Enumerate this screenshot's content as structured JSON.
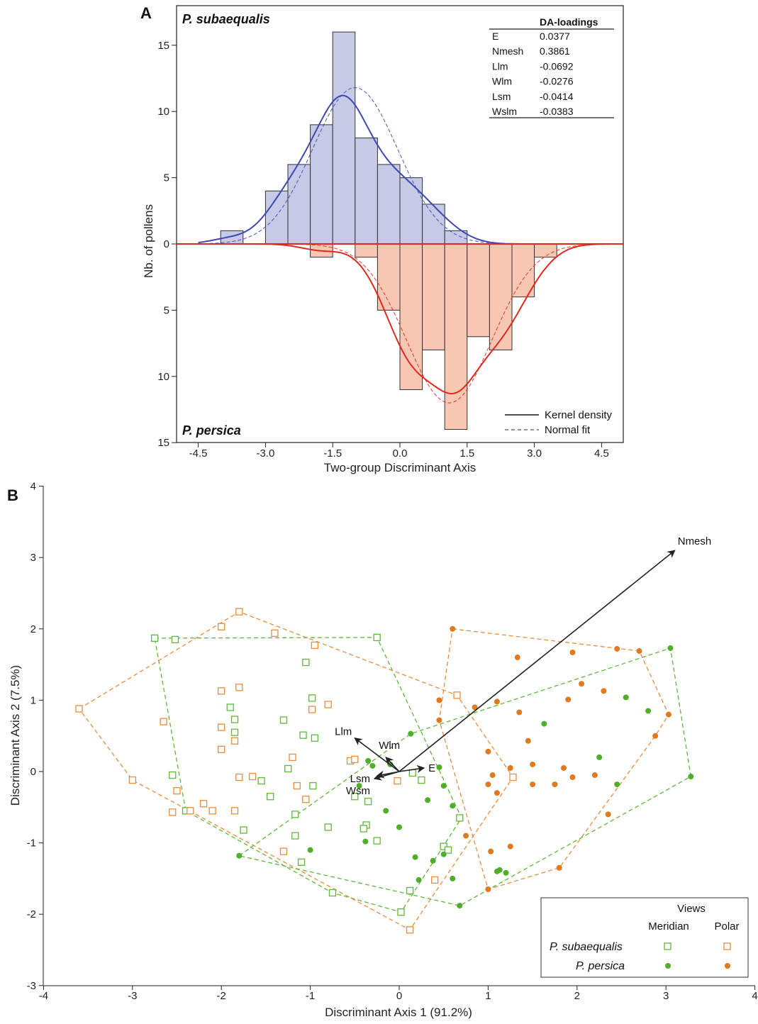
{
  "panel_a": {
    "panel_label": "A",
    "species_top": "P. subaequalis",
    "species_bottom": "P. persica",
    "loadings_title": "DA-loadings",
    "loadings": [
      {
        "var": "E",
        "value": "0.0377"
      },
      {
        "var": "Nmesh",
        "value": "0.3861"
      },
      {
        "var": "Llm",
        "value": "-0.0692"
      },
      {
        "var": "Wlm",
        "value": "-0.0276"
      },
      {
        "var": "Lsm",
        "value": "-0.0414"
      },
      {
        "var": "Wslm",
        "value": "-0.0383"
      }
    ],
    "legend": [
      {
        "label": "Kernel density",
        "style": "solid"
      },
      {
        "label": "Normal fit",
        "style": "dashed"
      }
    ]
  },
  "panel_b": {
    "panel_label": "B",
    "legend_title": "Views",
    "legend_cols": [
      "Meridian",
      "Polar"
    ],
    "legend_rows": [
      "P. subaequalis",
      "P. persica"
    ]
  },
  "chart_data": [
    {
      "type": "bar",
      "subtype": "mirrored histogram with density curves",
      "xlabel": "Two-group Discriminant Axis",
      "ylabel": "Nb. of pollens",
      "xlim": [
        -5.0,
        5.0
      ],
      "ylim_top": [
        0,
        16
      ],
      "ylim_bottom": [
        0,
        15
      ],
      "xticks": [
        "-4.5",
        "-3.0",
        "-1.5",
        "0.0",
        "1.5",
        "3.0",
        "4.5"
      ],
      "yticks_top": [
        "0",
        "5",
        "10",
        "15"
      ],
      "yticks_bottom": [
        "5",
        "10",
        "15"
      ],
      "bin_width": 0.5,
      "bins_left_edges": [
        -4.0,
        -3.5,
        -3.0,
        -2.5,
        -2.0,
        -1.5,
        -1.0,
        -0.5,
        0.0,
        0.5,
        1.0,
        1.5,
        2.0,
        2.5,
        3.0
      ],
      "series": [
        {
          "name": "P. subaequalis",
          "color": "#c7cae6",
          "curve_color": "#3b49b0",
          "direction": "up",
          "values": [
            1,
            0,
            4,
            6,
            9,
            16,
            8,
            6,
            5,
            3,
            1,
            0,
            0,
            0,
            0
          ],
          "kernel_density_peak": 11.2,
          "normal_fit_mean": -1.0,
          "normal_fit_peak": 11.8
        },
        {
          "name": "P. persica",
          "color": "#f7c7b4",
          "curve_color": "#dd2a1c",
          "direction": "down",
          "values": [
            0,
            0,
            0,
            0,
            1,
            0,
            1,
            5,
            11,
            8,
            14,
            7,
            8,
            4,
            1
          ],
          "kernel_density_peak": 11.3,
          "normal_fit_mean": 1.1,
          "normal_fit_peak": 12.0
        }
      ]
    },
    {
      "type": "scatter",
      "subtype": "discriminant biplot with convex hulls",
      "xlabel": "Discriminant Axis 1 (91.2%)",
      "ylabel": "Discriminant Axis 2 (7.5%)",
      "xlim": [
        -4,
        4
      ],
      "ylim": [
        -3,
        4
      ],
      "xticks": [
        "-4",
        "-3",
        "-2",
        "-1",
        "0",
        "1",
        "2",
        "3",
        "4"
      ],
      "yticks": [
        "-3",
        "-2",
        "-1",
        "0",
        "1",
        "2",
        "3",
        "4"
      ],
      "grid": false,
      "legend_placement": "bottom-right",
      "vectors": [
        {
          "name": "Nmesh",
          "x": 3.1,
          "y": 3.1
        },
        {
          "name": "Llm",
          "x": -0.5,
          "y": 0.47
        },
        {
          "name": "Wlm",
          "x": -0.15,
          "y": 0.2
        },
        {
          "name": "E",
          "x": 0.28,
          "y": 0.05
        },
        {
          "name": "Lsm",
          "x": -0.25,
          "y": -0.06
        },
        {
          "name": "Wsm",
          "x": -0.28,
          "y": -0.1
        }
      ],
      "series": [
        {
          "name": "P. subaequalis Meridian",
          "marker": "open-square",
          "color": "#5fb83a",
          "points": [
            [
              -2.75,
              1.87
            ],
            [
              -2.52,
              1.85
            ],
            [
              -1.05,
              1.53
            ],
            [
              -1.9,
              0.9
            ],
            [
              -1.85,
              0.73
            ],
            [
              -1.85,
              0.55
            ],
            [
              -0.98,
              1.03
            ],
            [
              -1.3,
              0.72
            ],
            [
              -1.08,
              0.51
            ],
            [
              -0.95,
              0.47
            ],
            [
              -1.25,
              0.04
            ],
            [
              -1.55,
              -0.13
            ],
            [
              -1.45,
              -0.35
            ],
            [
              -0.97,
              -0.2
            ],
            [
              -1.17,
              -0.6
            ],
            [
              -1.75,
              -0.82
            ],
            [
              -1.17,
              -0.9
            ],
            [
              -0.8,
              -0.78
            ],
            [
              -0.5,
              -0.35
            ],
            [
              -0.37,
              -0.75
            ],
            [
              -0.4,
              -0.8
            ],
            [
              -0.35,
              -0.42
            ],
            [
              -0.25,
              -0.97
            ],
            [
              0.15,
              -0.02
            ],
            [
              0.25,
              -0.12
            ],
            [
              -2.55,
              -0.05
            ],
            [
              -2.4,
              -0.55
            ],
            [
              -1.1,
              -1.27
            ],
            [
              -0.75,
              -1.7
            ],
            [
              0.12,
              -1.67
            ],
            [
              0.02,
              -1.97
            ],
            [
              0.5,
              -1.05
            ],
            [
              0.68,
              -0.65
            ],
            [
              0.55,
              -1.1
            ],
            [
              -0.25,
              1.88
            ]
          ]
        },
        {
          "name": "P. subaequalis Polar",
          "marker": "open-square",
          "color": "#e88d3e",
          "points": [
            [
              -3.6,
              0.88
            ],
            [
              -1.8,
              2.24
            ],
            [
              -2.0,
              2.03
            ],
            [
              -1.4,
              1.94
            ],
            [
              -0.95,
              1.77
            ],
            [
              -2.65,
              0.7
            ],
            [
              -2.0,
              1.13
            ],
            [
              -1.8,
              1.18
            ],
            [
              -2.0,
              0.62
            ],
            [
              -0.98,
              0.87
            ],
            [
              -0.8,
              0.94
            ],
            [
              -1.85,
              0.43
            ],
            [
              -2.0,
              0.31
            ],
            [
              -1.8,
              -0.08
            ],
            [
              -1.65,
              -0.07
            ],
            [
              -1.2,
              0.2
            ],
            [
              -1.15,
              -0.2
            ],
            [
              -3.0,
              -0.12
            ],
            [
              -2.5,
              -0.27
            ],
            [
              -2.2,
              -0.45
            ],
            [
              -2.1,
              -0.55
            ],
            [
              -1.85,
              -0.55
            ],
            [
              -1.05,
              -0.39
            ],
            [
              -1.3,
              -1.12
            ],
            [
              -0.55,
              0.15
            ],
            [
              -0.5,
              0.17
            ],
            [
              -0.02,
              -0.13
            ],
            [
              0.65,
              1.07
            ],
            [
              1.28,
              -0.08
            ],
            [
              0.4,
              -1.52
            ],
            [
              0.12,
              -2.22
            ],
            [
              -2.55,
              -0.57
            ],
            [
              -2.35,
              -0.55
            ]
          ]
        },
        {
          "name": "P. persica Meridian",
          "marker": "filled-circle",
          "color": "#4fae2a",
          "points": [
            [
              -1.8,
              -1.18
            ],
            [
              -1.0,
              -1.1
            ],
            [
              -0.35,
              0.15
            ],
            [
              -0.3,
              0.08
            ],
            [
              -0.1,
              0.1
            ],
            [
              0.13,
              0.53
            ],
            [
              0.45,
              0.06
            ],
            [
              0.5,
              -0.2
            ],
            [
              -0.45,
              -0.2
            ],
            [
              -0.15,
              -0.55
            ],
            [
              0.32,
              -0.4
            ],
            [
              0.0,
              -0.78
            ],
            [
              -0.38,
              -0.98
            ],
            [
              0.6,
              -0.48
            ],
            [
              0.18,
              -1.2
            ],
            [
              0.38,
              -1.25
            ],
            [
              0.22,
              -1.52
            ],
            [
              0.6,
              -1.5
            ],
            [
              0.68,
              -1.88
            ],
            [
              0.5,
              -1.16
            ],
            [
              1.63,
              0.67
            ],
            [
              1.13,
              -1.38
            ],
            [
              1.1,
              -1.4
            ],
            [
              1.2,
              -1.42
            ],
            [
              2.25,
              0.2
            ],
            [
              2.45,
              -0.18
            ],
            [
              2.55,
              1.04
            ],
            [
              2.8,
              0.85
            ],
            [
              3.05,
              1.73
            ],
            [
              3.28,
              -0.07
            ]
          ]
        },
        {
          "name": "P. persica Polar",
          "marker": "filled-circle",
          "color": "#e07a1e",
          "points": [
            [
              0.6,
              2.0
            ],
            [
              1.33,
              1.6
            ],
            [
              1.95,
              1.67
            ],
            [
              2.45,
              1.72
            ],
            [
              2.7,
              1.69
            ],
            [
              3.03,
              0.8
            ],
            [
              2.88,
              0.5
            ],
            [
              2.35,
              -0.6
            ],
            [
              1.8,
              -1.35
            ],
            [
              1.0,
              -1.65
            ],
            [
              0.75,
              -0.9
            ],
            [
              0.45,
              1.0
            ],
            [
              0.45,
              0.72
            ],
            [
              0.85,
              0.9
            ],
            [
              1.1,
              0.98
            ],
            [
              1.35,
              0.83
            ],
            [
              1.9,
              1.01
            ],
            [
              2.05,
              1.23
            ],
            [
              2.3,
              1.13
            ],
            [
              1.45,
              0.43
            ],
            [
              1.0,
              0.28
            ],
            [
              1.25,
              0.05
            ],
            [
              1.5,
              0.1
            ],
            [
              1.85,
              0.05
            ],
            [
              2.2,
              -0.05
            ],
            [
              1.05,
              -0.05
            ],
            [
              1.5,
              -0.18
            ],
            [
              1.75,
              -0.18
            ],
            [
              1.95,
              -0.08
            ],
            [
              1.03,
              -1.12
            ],
            [
              1.25,
              -1.05
            ],
            [
              1.1,
              -0.3
            ],
            [
              1.0,
              -0.18
            ]
          ]
        }
      ],
      "hulls": [
        {
          "name": "P. subaequalis Meridian",
          "color": "#5fb83a",
          "points": [
            [
              -2.75,
              1.87
            ],
            [
              -0.25,
              1.88
            ],
            [
              0.7,
              -0.65
            ],
            [
              0.02,
              -1.97
            ],
            [
              -0.75,
              -1.7
            ],
            [
              -2.4,
              -0.55
            ]
          ]
        },
        {
          "name": "P. subaequalis Polar",
          "color": "#e88d3e",
          "points": [
            [
              -3.6,
              0.88
            ],
            [
              -1.8,
              2.24
            ],
            [
              0.65,
              1.07
            ],
            [
              1.28,
              -0.08
            ],
            [
              0.12,
              -2.22
            ],
            [
              -3.0,
              -0.12
            ]
          ]
        },
        {
          "name": "P. persica Meridian",
          "color": "#5fb83a",
          "points": [
            [
              -1.8,
              -1.18
            ],
            [
              0.13,
              0.53
            ],
            [
              3.05,
              1.73
            ],
            [
              3.28,
              -0.07
            ],
            [
              0.68,
              -1.88
            ]
          ]
        },
        {
          "name": "P. persica Polar",
          "color": "#e88d3e",
          "points": [
            [
              0.6,
              2.0
            ],
            [
              2.7,
              1.69
            ],
            [
              3.03,
              0.8
            ],
            [
              2.88,
              0.5
            ],
            [
              1.8,
              -1.35
            ],
            [
              1.0,
              -1.65
            ],
            [
              0.45,
              0.72
            ]
          ]
        }
      ]
    }
  ]
}
